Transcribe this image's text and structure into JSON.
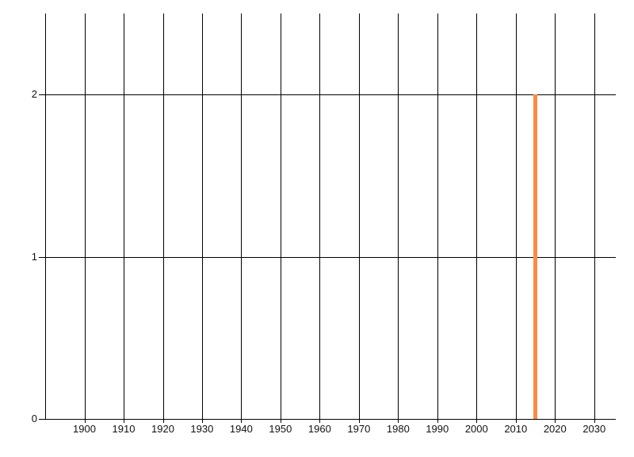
{
  "chart_data": {
    "type": "bar",
    "title": "",
    "xlabel": "",
    "ylabel": "",
    "x": [
      2015
    ],
    "values": [
      2
    ],
    "series": [
      {
        "name": "",
        "x": [
          2015
        ],
        "values": [
          2
        ]
      }
    ],
    "xlim": [
      1890,
      2035.5
    ],
    "ylim": [
      0,
      2.5
    ],
    "x_gridline_years": [
      1890,
      1900,
      1910,
      1920,
      1930,
      1940,
      1950,
      1960,
      1970,
      1980,
      1990,
      2000,
      2010,
      2020,
      2030
    ],
    "x_tick_labels": [
      "1900",
      "1910",
      "1920",
      "1930",
      "1940",
      "1950",
      "1960",
      "1970",
      "1980",
      "1990",
      "2000",
      "2010",
      "2020",
      "2030"
    ],
    "x_tick_label_years": [
      1900,
      1910,
      1920,
      1930,
      1940,
      1950,
      1960,
      1970,
      1980,
      1990,
      2000,
      2010,
      2020,
      2030
    ],
    "y_tick_labels": [
      "0",
      "1",
      "2"
    ],
    "y_tick_values": [
      0,
      1,
      2
    ],
    "grid": "on",
    "legend_position": "none",
    "bar_color": "#fb8b44",
    "grid_color": "#000000",
    "tick_label_color": "#111111",
    "background_color": "#ffffff"
  }
}
